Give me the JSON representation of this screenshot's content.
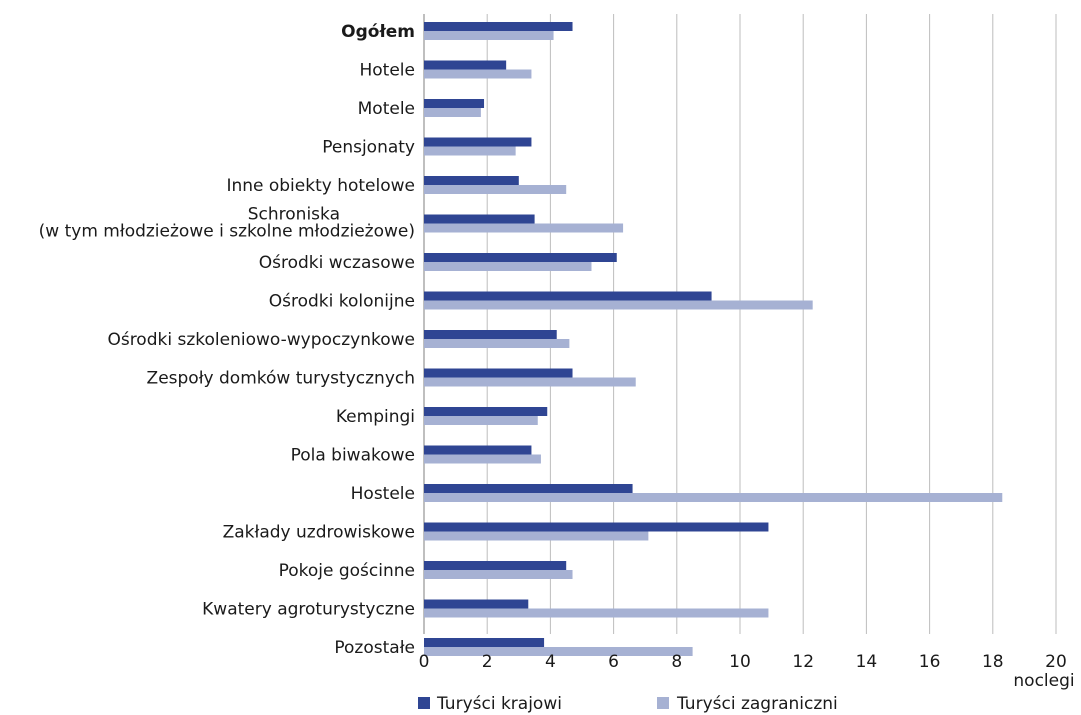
{
  "chart_data": {
    "type": "bar",
    "orientation": "horizontal",
    "categories": [
      "Ogółem",
      "Hotele",
      "Motele",
      "Pensjonaty",
      "Inne obiekty hotelowe",
      "Schroniska\n(w tym młodzieżowe i szkolne młodzieżowe)",
      "Ośrodki wczasowe",
      "Ośrodki kolonijne",
      "Ośrodki szkoleniowo-wypoczynkowe",
      "Zespoły domków turystycznych",
      "Kempingi",
      "Pola biwakowe",
      "Hostele",
      "Zakłady uzdrowiskowe",
      "Pokoje gościnne",
      "Kwatery agroturystyczne",
      "Pozostałe"
    ],
    "bold_categories": [
      "Ogółem"
    ],
    "series": [
      {
        "name": "Turyści krajowi",
        "color": "#2f4593",
        "values": [
          4.7,
          2.6,
          1.9,
          3.4,
          3.0,
          3.5,
          6.1,
          9.1,
          4.2,
          4.7,
          3.9,
          3.4,
          6.6,
          10.9,
          4.5,
          3.3,
          3.8
        ]
      },
      {
        "name": "Turyści zagraniczni",
        "color": "#a6b1d3",
        "values": [
          4.1,
          3.4,
          1.8,
          2.9,
          4.5,
          6.3,
          5.3,
          12.3,
          4.6,
          6.7,
          3.6,
          3.7,
          18.3,
          7.1,
          4.7,
          10.9,
          8.5
        ]
      }
    ],
    "x_ticks": [
      "0",
      "2",
      "4",
      "6",
      "8",
      "10",
      "12",
      "14",
      "16",
      "18",
      "20"
    ],
    "xlim": [
      0,
      20
    ],
    "x_unit": "noclegi",
    "grid": "vertical",
    "legend_position": "bottom"
  }
}
